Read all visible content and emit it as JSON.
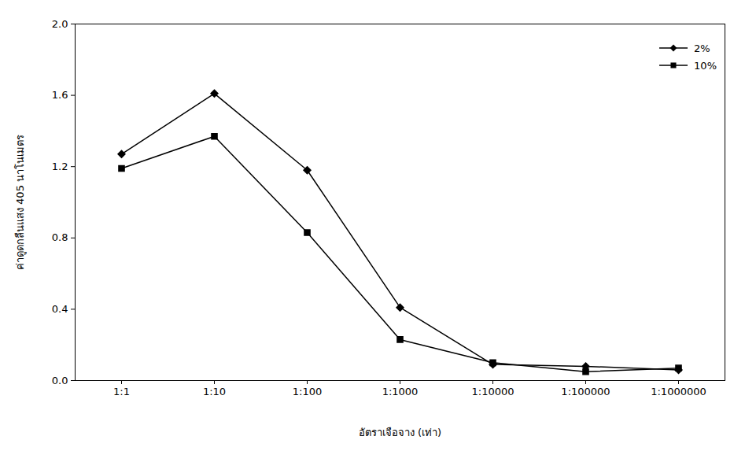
{
  "chart_data": {
    "type": "line",
    "x_label": "อัตราเจือจาง (เท่า)",
    "y_label": "ค่าดูดกลืนแสง 405 นาโนเมตร",
    "categories": [
      "1:1",
      "1:10",
      "1:100",
      "1:1000",
      "1:10000",
      "1:100000",
      "1:1000000"
    ],
    "series": [
      {
        "name": "2%",
        "color": "#000000",
        "marker": "diamond",
        "line_style": "solid",
        "values": [
          1.27,
          1.61,
          1.18,
          0.41,
          0.09,
          0.08,
          0.06
        ]
      },
      {
        "name": "10%",
        "color": "#000000",
        "marker": "square",
        "line_style": "solid",
        "values": [
          1.19,
          1.37,
          0.83,
          0.23,
          0.1,
          0.05,
          0.07
        ]
      }
    ],
    "ylim": [
      0,
      2
    ],
    "yticks": [
      {
        "value": 0,
        "label": "0.0"
      },
      0.4,
      0.8,
      1.2,
      1.6,
      {
        "value": 2,
        "label": "2.0"
      }
    ],
    "grid": false,
    "legend": "top-right"
  }
}
